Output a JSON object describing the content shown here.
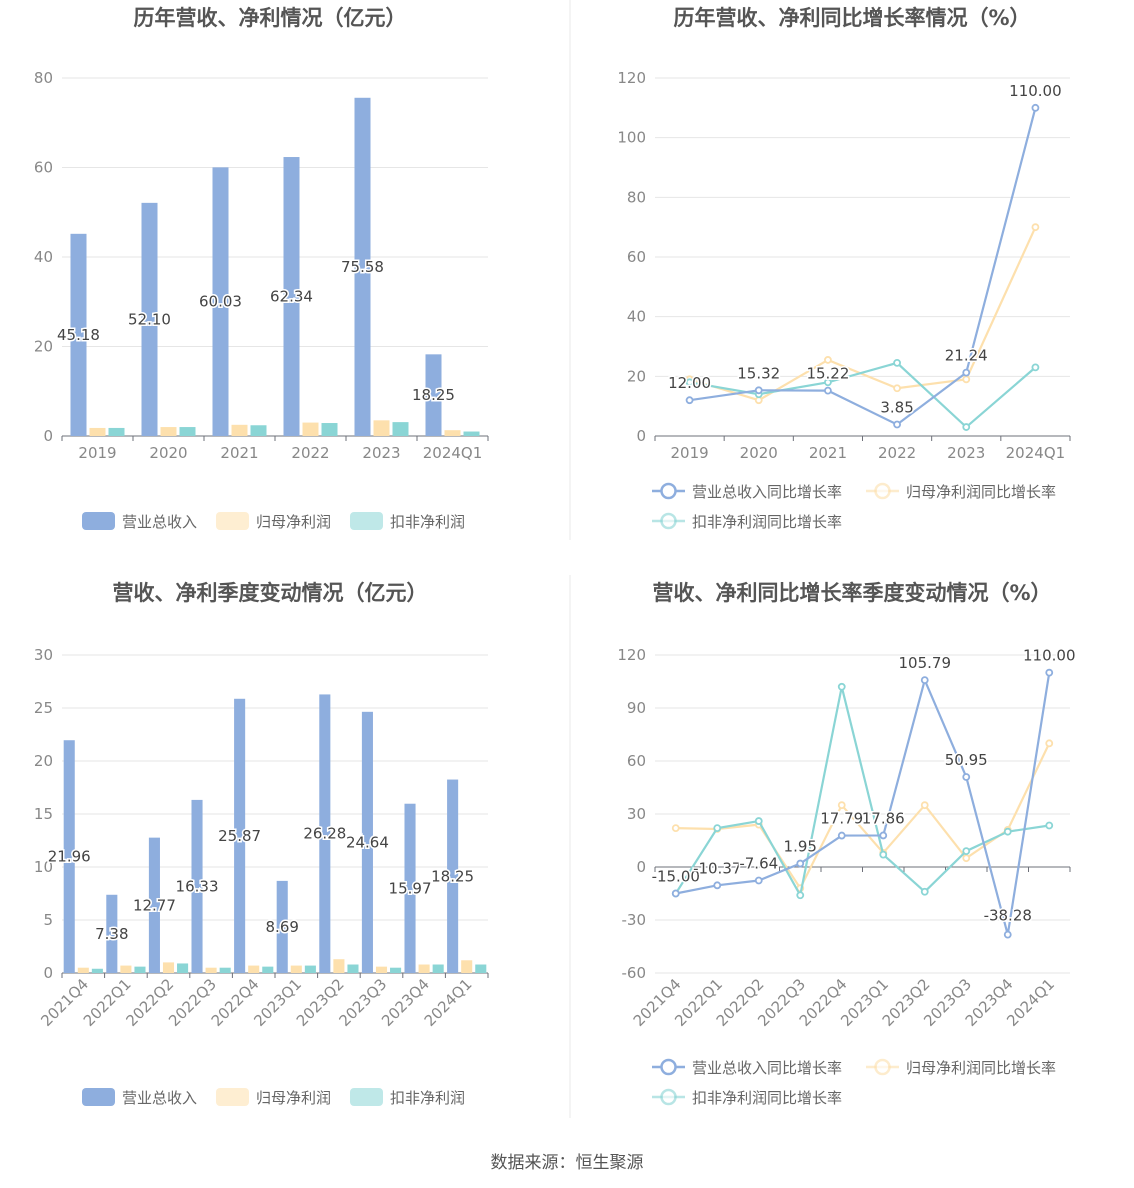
{
  "colors": {
    "revenue": "#8eaede",
    "net_profit": "#fde0ad",
    "deducted_profit": "#8ad5d5",
    "text": "#555555",
    "axis": "#888888",
    "grid": "#e6e6e6",
    "divider": "#e8e8e8"
  },
  "legend": {
    "revenue": "营业总收入",
    "net_profit": "归母净利润",
    "deducted_profit": "扣非净利润",
    "revenue_yoy": "营业总收入同比增长率",
    "net_profit_yoy": "归母净利润同比增长率",
    "deducted_profit_yoy": "扣非净利润同比增长率"
  },
  "source": "数据来源：恒生聚源",
  "chart_data": [
    {
      "type": "bar",
      "title": "历年营收、净利情况（亿元）",
      "categories": [
        "2019",
        "2020",
        "2021",
        "2022",
        "2023",
        "2024Q1"
      ],
      "ylim": [
        0,
        80
      ],
      "yticks": [
        0,
        20,
        40,
        60,
        80
      ],
      "legend_position": "bottom",
      "series": [
        {
          "name": "营业总收入",
          "values": [
            45.18,
            52.1,
            60.03,
            62.34,
            75.58,
            18.25
          ]
        },
        {
          "name": "归母净利润",
          "values": [
            1.8,
            2.0,
            2.5,
            3.0,
            3.5,
            1.3
          ]
        },
        {
          "name": "扣非净利润",
          "values": [
            1.8,
            2.0,
            2.4,
            2.9,
            3.1,
            1.0
          ]
        }
      ],
      "data_labels": [
        "45.18",
        "52.10",
        "60.03",
        "62.34",
        "75.58",
        "18.25"
      ]
    },
    {
      "type": "line",
      "title": "历年营收、净利同比增长率情况（%）",
      "categories": [
        "2019",
        "2020",
        "2021",
        "2022",
        "2023",
        "2024Q1"
      ],
      "ylim": [
        0,
        120
      ],
      "yticks": [
        0,
        20,
        40,
        60,
        80,
        100,
        120
      ],
      "legend_position": "bottom",
      "series": [
        {
          "name": "营业总收入同比增长率",
          "values": [
            12.0,
            15.32,
            15.22,
            3.85,
            21.24,
            110.0
          ]
        },
        {
          "name": "归母净利润同比增长率",
          "values": [
            19,
            12,
            25.5,
            16,
            19,
            70
          ]
        },
        {
          "name": "扣非净利润同比增长率",
          "values": [
            18,
            14,
            18,
            24.5,
            3,
            23
          ]
        }
      ],
      "data_labels": [
        "12.00",
        "15.32",
        "15.22",
        "3.85",
        "21.24",
        "110.00"
      ]
    },
    {
      "type": "bar",
      "title": "营收、净利季度变动情况（亿元）",
      "categories": [
        "2021Q4",
        "2022Q1",
        "2022Q2",
        "2022Q3",
        "2022Q4",
        "2023Q1",
        "2023Q2",
        "2023Q3",
        "2023Q4",
        "2024Q1"
      ],
      "ylim": [
        0,
        30
      ],
      "yticks": [
        0,
        5,
        10,
        15,
        20,
        25,
        30
      ],
      "legend_position": "bottom",
      "series": [
        {
          "name": "营业总收入",
          "values": [
            21.96,
            7.38,
            12.77,
            16.33,
            25.87,
            8.69,
            26.28,
            24.64,
            15.97,
            18.25
          ]
        },
        {
          "name": "归母净利润",
          "values": [
            0.5,
            0.7,
            1.0,
            0.5,
            0.7,
            0.7,
            1.3,
            0.6,
            0.8,
            1.2
          ]
        },
        {
          "name": "扣非净利润",
          "values": [
            0.4,
            0.6,
            0.9,
            0.5,
            0.6,
            0.7,
            0.8,
            0.5,
            0.8,
            0.8
          ]
        }
      ],
      "data_labels": [
        "21.96",
        "7.38",
        "12.77",
        "16.33",
        "25.87",
        "8.69",
        "26.28",
        "24.64",
        "15.97",
        "18.25"
      ]
    },
    {
      "type": "line",
      "title": "营收、净利同比增长率季度变动情况（%）",
      "categories": [
        "2021Q4",
        "2022Q1",
        "2022Q2",
        "2022Q3",
        "2022Q4",
        "2023Q1",
        "2023Q2",
        "2023Q3",
        "2023Q4",
        "2024Q1"
      ],
      "ylim": [
        -60,
        120
      ],
      "yticks": [
        -60,
        -30,
        0,
        30,
        60,
        90,
        120
      ],
      "legend_position": "bottom",
      "series": [
        {
          "name": "营业总收入同比增长率",
          "values": [
            -15.0,
            -10.37,
            -7.64,
            1.95,
            17.79,
            17.86,
            105.79,
            50.95,
            -38.28,
            110.0
          ]
        },
        {
          "name": "归母净利润同比增长率",
          "values": [
            22,
            21.5,
            24,
            -12,
            35,
            8,
            35,
            5,
            21,
            70
          ]
        },
        {
          "name": "扣非净利润同比增长率",
          "values": [
            -15,
            22,
            26,
            -16,
            102,
            7,
            -14,
            9,
            20,
            23.5
          ]
        }
      ],
      "data_labels": [
        "-15.00",
        "-10.37",
        "-7.64",
        "1.95",
        "17.79",
        "17.86",
        "105.79",
        "50.95",
        "-38.28",
        "110.00"
      ]
    }
  ]
}
